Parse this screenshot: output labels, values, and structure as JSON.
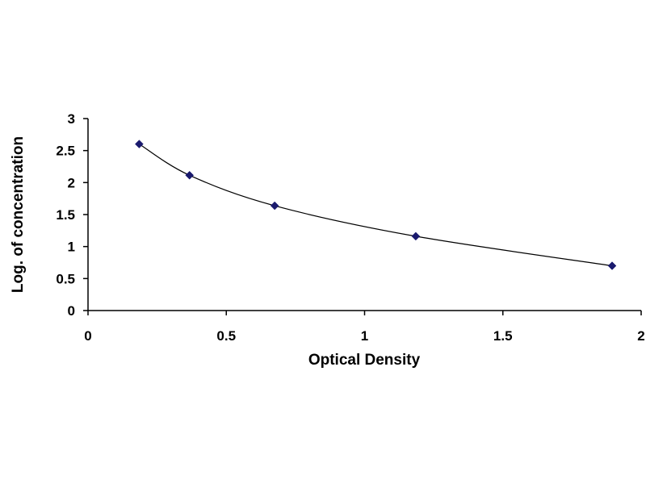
{
  "chart_data": {
    "type": "scatter",
    "title": "",
    "xlabel": "Optical Density",
    "ylabel": "Log. of concentration",
    "xlim": [
      0,
      2
    ],
    "ylim": [
      0,
      3
    ],
    "xticks": [
      0,
      0.5,
      1,
      1.5,
      2
    ],
    "xtick_labels": [
      "0",
      "0.5",
      "1",
      "1.5",
      "2"
    ],
    "yticks": [
      0,
      0.5,
      1,
      1.5,
      2,
      2.5,
      3
    ],
    "ytick_labels": [
      "0",
      "0.5",
      "1",
      "1.5",
      "2",
      "2.5",
      "3"
    ],
    "grid": false,
    "legend": "none",
    "trendline": "smooth curve through points",
    "series": [
      {
        "x": [
          0.185,
          0.367,
          0.675,
          1.185,
          1.895
        ],
        "y": [
          2.602,
          2.114,
          1.638,
          1.161,
          0.699
        ]
      }
    ],
    "colors": {
      "marker": "#1a1a6e",
      "line": "#000000",
      "axis": "#000000"
    }
  }
}
